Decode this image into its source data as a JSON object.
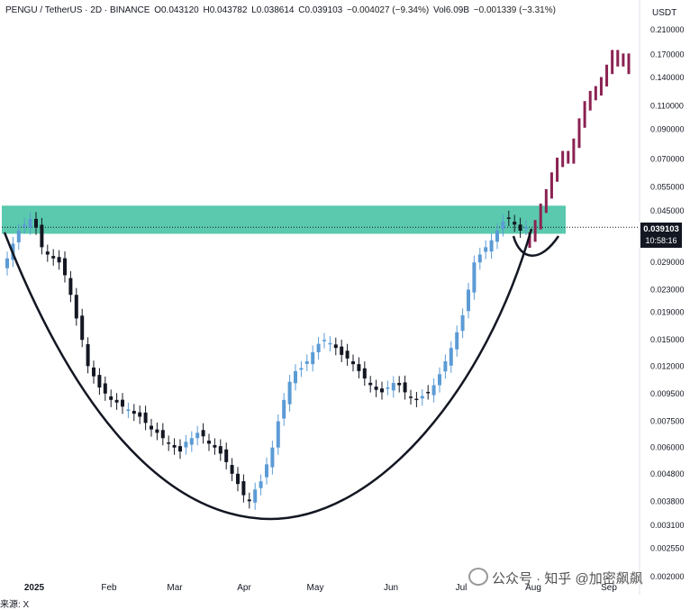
{
  "header": {
    "symbol": "PENGU / TetherUS · 2D · BINANCE",
    "open": "O0.043120",
    "high": "H0.043782",
    "low": "L0.038614",
    "close": "C0.039103",
    "change": "−0.004027 (−9.34%)",
    "volume": "Vol6.09B",
    "vol_change": "−0.001339 (−3.31%)"
  },
  "unit": "USDT",
  "last_price": "0.039103",
  "countdown": "10:58:16",
  "source_note": "来源: X",
  "watermark": "公众号 · 知乎 @加密飙飙",
  "colors": {
    "up": "#5b9bd5",
    "down": "#131722",
    "projection": "#8b2252",
    "zone": "#3dbf9f",
    "curve": "#131722"
  },
  "chart_data": {
    "type": "candlestick",
    "title": "",
    "y_scale": "log",
    "y_ticks": [
      "0.210000",
      "0.170000",
      "0.140000",
      "0.110000",
      "0.090000",
      "0.070000",
      "0.055000",
      "0.045000",
      "0.029000",
      "0.023000",
      "0.019000",
      "0.015000",
      "0.012000",
      "0.009500",
      "0.007500",
      "0.006000",
      "0.004800",
      "0.003800",
      "0.003100",
      "0.002550",
      "0.002000"
    ],
    "x_ticks": [
      "2025",
      "Feb",
      "Mar",
      "Apr",
      "May",
      "Jun",
      "Jul",
      "Aug",
      "Sep"
    ],
    "resistance_zone": [
      0.037,
      0.047
    ],
    "current_price": 0.039103,
    "cup_bottom": 0.0034,
    "close_series": [
      0.03,
      0.034,
      0.038,
      0.04,
      0.042,
      0.039,
      0.033,
      0.031,
      0.03,
      0.029,
      0.026,
      0.022,
      0.018,
      0.015,
      0.012,
      0.011,
      0.01,
      0.0095,
      0.009,
      0.0088,
      0.0085,
      0.0083,
      0.008,
      0.0078,
      0.0074,
      0.007,
      0.0068,
      0.0065,
      0.0062,
      0.006,
      0.0058,
      0.0063,
      0.0065,
      0.0068,
      0.0066,
      0.0062,
      0.006,
      0.0057,
      0.0053,
      0.0048,
      0.0044,
      0.004,
      0.0038,
      0.0042,
      0.0045,
      0.0052,
      0.006,
      0.0075,
      0.009,
      0.0105,
      0.0115,
      0.0118,
      0.0125,
      0.0135,
      0.0145,
      0.015,
      0.0146,
      0.014,
      0.0132,
      0.0128,
      0.0122,
      0.0115,
      0.0108,
      0.0102,
      0.0098,
      0.0096,
      0.01,
      0.0104,
      0.0102,
      0.0096,
      0.0092,
      0.009,
      0.0093,
      0.0096,
      0.0102,
      0.0112,
      0.0125,
      0.014,
      0.016,
      0.0185,
      0.023,
      0.029,
      0.031,
      0.033,
      0.035,
      0.038,
      0.041,
      0.042,
      0.04,
      0.038,
      0.0391
    ],
    "projection_series": [
      0.036,
      0.04,
      0.046,
      0.052,
      0.06,
      0.068,
      0.072,
      0.07,
      0.08,
      0.095,
      0.11,
      0.12,
      0.125,
      0.135,
      0.15,
      0.17,
      0.16,
      0.165,
      0.15
    ]
  }
}
